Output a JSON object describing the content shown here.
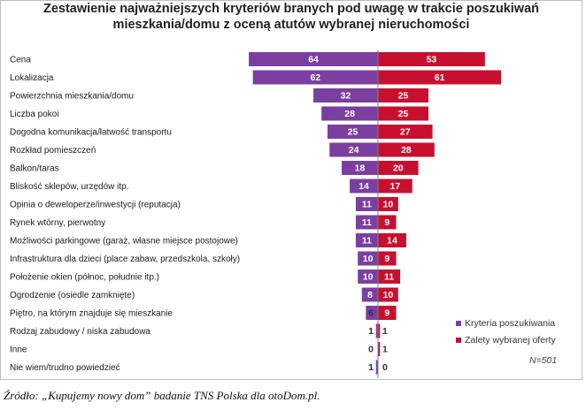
{
  "title_lines": [
    "Zestawienie najważniejszych kryteriów branych pod uwagę w trakcie poszukiwań",
    "mieszkania/domu z oceną  atutów wybranej nieruchomości"
  ],
  "note": "N=501",
  "source": "Źródło: „Kupujemy nowy dom” badanie TNS Polska dla otoDom.pl.",
  "colors": {
    "left": "#7b3fa0",
    "right": "#c8102e"
  },
  "chart_data": {
    "type": "bar",
    "orientation": "horizontal-diverging",
    "categories": [
      "Cena",
      "Lokalizacja",
      "Powierzchnia mieszkania/domu",
      "Liczba pokoi",
      "Dogodna komunikacja/łatwość transportu",
      "Rozkład pomieszczeń",
      "Balkon/taras",
      "Bliskość sklepów, urzędów itp.",
      "Opinia o deweloperze/inwestycji (reputacja)",
      "Rynek wtórny, pierwotny",
      "Możliwości parkingowe (garaż, własne miejsce postojowe)",
      "Infrastruktura dla dzieci (place zabaw, przedszkola, szkoły)",
      "Położenie okien (północ, południe itp.)",
      "Ogrodzenie (osiedle zamknięte)",
      "Piętro, na którym znajduje się mieszkanie",
      "Rodzaj zabudowy / niska zabudowa",
      "Inne",
      "Nie wiem/trudno powiedzieć"
    ],
    "series": [
      {
        "name": "Kryteria poszukiwania",
        "values": [
          64,
          62,
          32,
          28,
          25,
          24,
          18,
          14,
          11,
          11,
          11,
          10,
          10,
          8,
          6,
          1,
          0,
          1
        ]
      },
      {
        "name": "Zalety wybranej oferty",
        "values": [
          53,
          61,
          25,
          25,
          27,
          28,
          20,
          17,
          10,
          9,
          14,
          9,
          11,
          10,
          9,
          1,
          1,
          0
        ]
      }
    ],
    "legend_position": "bottom-right",
    "grid": false
  }
}
